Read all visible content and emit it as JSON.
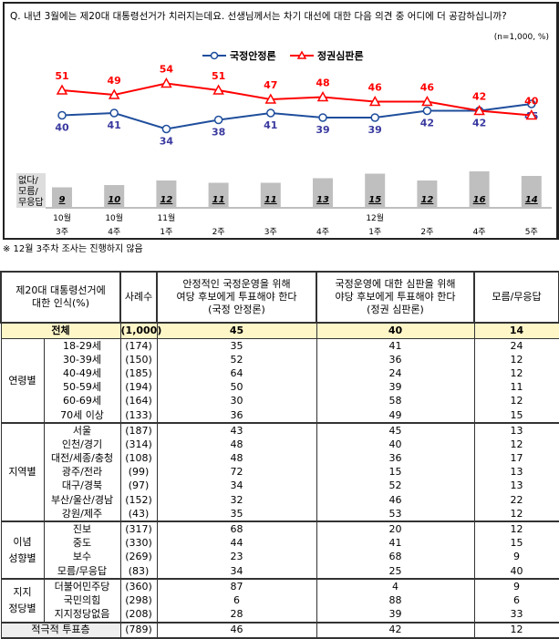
{
  "chart_data": {
    "type": "line",
    "title": "Q. 내년 3월에는 제20대 대통령선거가 치러지는데요. 선생님께서는 차기 대선에 대한 다음 의견 중 어디에 더 공감하십니까?",
    "unit_note": "(n=1,000, %)",
    "months": [
      "10월",
      "10월",
      "11월",
      "",
      "",
      "",
      "12월",
      "",
      "",
      ""
    ],
    "weeks": [
      "3주",
      "4주",
      "1주",
      "2주",
      "3주",
      "4주",
      "1주",
      "2주",
      "4주",
      "5주"
    ],
    "series": [
      {
        "name": "국정안정론",
        "color": "#1f4e9c",
        "marker": "circle",
        "values": [
          40,
          41,
          34,
          38,
          41,
          39,
          39,
          42,
          42,
          45
        ]
      },
      {
        "name": "정권심판론",
        "color": "#ff0000",
        "marker": "triangle",
        "values": [
          51,
          49,
          54,
          51,
          47,
          48,
          46,
          46,
          42,
          40
        ]
      }
    ],
    "bars": {
      "name": "없다/\n모름/\n무응답",
      "label_lines": [
        "없다/",
        "모름/",
        "무응답"
      ],
      "color": "#bfbfbf",
      "values": [
        9,
        10,
        12,
        11,
        11,
        13,
        15,
        12,
        16,
        14
      ]
    },
    "legend": "top-center"
  },
  "note": "※ 12월 3주차 조사는 진행하지 않음",
  "table": {
    "headers": [
      "제20대 대통령선거에\n대한 인식(%)",
      "사례수",
      "안정적인 국정운영을 위해\n여당 후보에게 투표해야 한다\n(국정 안정론)",
      "국정운영에 대한 심판을 위해\n야당 후보에게 투표해야 한다\n(정권 심판론)",
      "모름/무응답"
    ],
    "total": {
      "label": "전체",
      "n": "(1,000)",
      "a": "45",
      "b": "40",
      "c": "14"
    },
    "groups": [
      {
        "name": "연령별",
        "rows": [
          {
            "label": "18-29세",
            "n": "(174)",
            "a": "35",
            "b": "41",
            "c": "24"
          },
          {
            "label": "30-39세",
            "n": "(150)",
            "a": "52",
            "b": "36",
            "c": "12"
          },
          {
            "label": "40-49세",
            "n": "(185)",
            "a": "64",
            "b": "24",
            "c": "12"
          },
          {
            "label": "50-59세",
            "n": "(194)",
            "a": "50",
            "b": "39",
            "c": "11"
          },
          {
            "label": "60-69세",
            "n": "(164)",
            "a": "30",
            "b": "58",
            "c": "12"
          },
          {
            "label": "70세 이상",
            "n": "(133)",
            "a": "36",
            "b": "49",
            "c": "15"
          }
        ]
      },
      {
        "name": "지역별",
        "rows": [
          {
            "label": "서울",
            "n": "(187)",
            "a": "43",
            "b": "45",
            "c": "13"
          },
          {
            "label": "인천/경기",
            "n": "(314)",
            "a": "48",
            "b": "40",
            "c": "12"
          },
          {
            "label": "대전/세종/충청",
            "n": "(108)",
            "a": "48",
            "b": "36",
            "c": "17"
          },
          {
            "label": "광주/전라",
            "n": "(99)",
            "a": "72",
            "b": "15",
            "c": "13"
          },
          {
            "label": "대구/경북",
            "n": "(97)",
            "a": "34",
            "b": "52",
            "c": "13"
          },
          {
            "label": "부산/울산/경남",
            "n": "(152)",
            "a": "32",
            "b": "46",
            "c": "22"
          },
          {
            "label": "강원/제주",
            "n": "(43)",
            "a": "35",
            "b": "53",
            "c": "12"
          }
        ]
      },
      {
        "name": "이념\n성향별",
        "rows": [
          {
            "label": "진보",
            "n": "(317)",
            "a": "68",
            "b": "20",
            "c": "12"
          },
          {
            "label": "중도",
            "n": "(330)",
            "a": "44",
            "b": "41",
            "c": "15"
          },
          {
            "label": "보수",
            "n": "(269)",
            "a": "23",
            "b": "68",
            "c": "9"
          },
          {
            "label": "모름/무응답",
            "n": "(83)",
            "a": "34",
            "b": "25",
            "c": "40"
          }
        ]
      },
      {
        "name": "지지\n정당별",
        "rows": [
          {
            "label": "더불어민주당",
            "n": "(360)",
            "a": "87",
            "b": "4",
            "c": "9"
          },
          {
            "label": "국민의힘",
            "n": "(298)",
            "a": "6",
            "b": "88",
            "c": "6"
          },
          {
            "label": "지지정당없음",
            "n": "(208)",
            "a": "28",
            "b": "39",
            "c": "33"
          }
        ]
      }
    ],
    "last": {
      "label": "적극적 투표층",
      "n": "(789)",
      "a": "46",
      "b": "42",
      "c": "12"
    }
  }
}
